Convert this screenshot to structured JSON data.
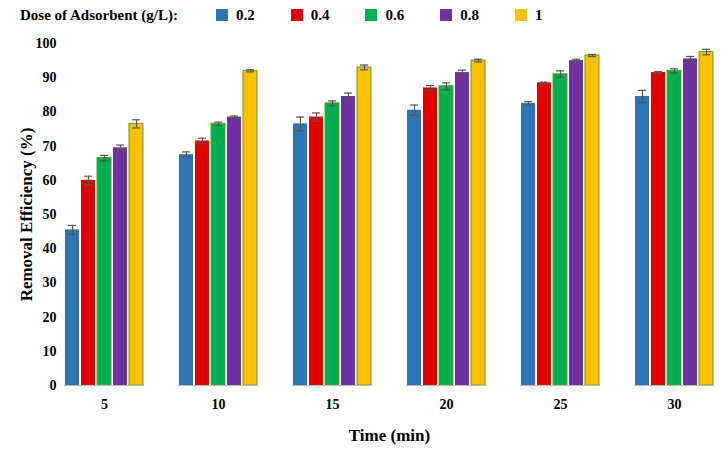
{
  "chart_data": {
    "type": "bar",
    "legend_title": "Dose of Adsorbent (g/L):",
    "legend": "top",
    "x_label": "Time (min)",
    "y_label": "Removal Efficiency (%)",
    "categories": [
      5,
      10,
      15,
      20,
      25,
      30
    ],
    "ylim": [
      0,
      100
    ],
    "yticks": [
      0,
      10,
      20,
      30,
      40,
      50,
      60,
      70,
      80,
      90,
      100
    ],
    "grid": false,
    "series": [
      {
        "name": "0.2",
        "color": "#2e75b6",
        "values": [
          45.5,
          67.5,
          76.5,
          80.5,
          82.5,
          84.5
        ],
        "errors": [
          1.3,
          0.8,
          2,
          1.5,
          0.5,
          1.8
        ]
      },
      {
        "name": "0.4",
        "color": "#e00000",
        "values": [
          60,
          71.5,
          78.5,
          87,
          88.5,
          91.5
        ],
        "errors": [
          1.2,
          0.8,
          1.2,
          0.7,
          0.2,
          0.3
        ]
      },
      {
        "name": "0.6",
        "color": "#00b050",
        "values": [
          66.5,
          76.5,
          82.5,
          87.5,
          91,
          92
        ],
        "errors": [
          0.8,
          0.5,
          0.7,
          1,
          1,
          0.6
        ]
      },
      {
        "name": "0.8",
        "color": "#7030a0",
        "values": [
          69.5,
          78.5,
          84.5,
          91.5,
          95,
          95.5
        ],
        "errors": [
          0.8,
          0.3,
          1,
          0.7,
          0.4,
          0.7
        ]
      },
      {
        "name": "1",
        "color": "#ffc000",
        "values": [
          76.5,
          92,
          93,
          95,
          96.5,
          97.5
        ],
        "errors": [
          1.2,
          0.3,
          0.7,
          0.4,
          0.3,
          0.8
        ]
      }
    ]
  }
}
